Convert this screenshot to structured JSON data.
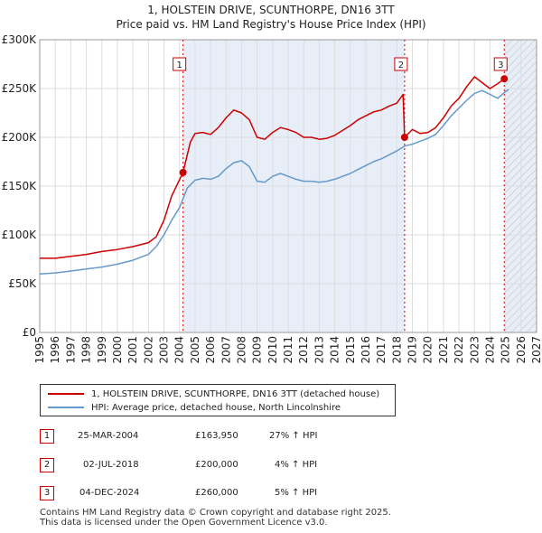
{
  "title": "1, HOLSTEIN DRIVE, SCUNTHORPE, DN16 3TT",
  "subtitle": "Price paid vs. HM Land Registry's House Price Index (HPI)",
  "colors": {
    "property_line": "#cc0000",
    "hpi_line": "#6699cc",
    "shade": "#e8eef8",
    "grid": "#dddddd"
  },
  "chart_data": {
    "type": "line",
    "xlim": [
      1995,
      2027
    ],
    "ylim": [
      0,
      300000
    ],
    "x_ticks": [
      "1995",
      "1996",
      "1997",
      "1998",
      "1999",
      "2000",
      "2001",
      "2002",
      "2003",
      "2004",
      "2005",
      "2006",
      "2007",
      "2008",
      "2009",
      "2010",
      "2011",
      "2012",
      "2013",
      "2014",
      "2015",
      "2016",
      "2017",
      "2018",
      "2019",
      "2020",
      "2021",
      "2022",
      "2023",
      "2024",
      "2025",
      "2026",
      "2027"
    ],
    "y_ticks": [
      {
        "value": 0,
        "label": "£0"
      },
      {
        "value": 50000,
        "label": "£50K"
      },
      {
        "value": 100000,
        "label": "£100K"
      },
      {
        "value": 150000,
        "label": "£150K"
      },
      {
        "value": 200000,
        "label": "£200K"
      },
      {
        "value": 250000,
        "label": "£250K"
      },
      {
        "value": 300000,
        "label": "£300K"
      }
    ],
    "shaded_ranges": [
      [
        2004.23,
        2018.5
      ],
      [
        2024.92,
        2027
      ]
    ],
    "hatched_from": 2025.0,
    "series": [
      {
        "name": "1, HOLSTEIN DRIVE, SCUNTHORPE, DN16 3TT (detached house)",
        "x": [
          1995,
          1996,
          1997,
          1998,
          1999,
          2000,
          2001,
          2002,
          2002.5,
          2003,
          2003.5,
          2004.23,
          2004.7,
          2005,
          2005.5,
          2006,
          2006.5,
          2007,
          2007.5,
          2008,
          2008.5,
          2009,
          2009.5,
          2010,
          2010.5,
          2011,
          2011.5,
          2012,
          2012.5,
          2013,
          2013.5,
          2014,
          2014.5,
          2015,
          2015.5,
          2016,
          2016.5,
          2017,
          2017.5,
          2018,
          2018.4,
          2018.5,
          2019,
          2019.5,
          2020,
          2020.5,
          2021,
          2021.5,
          2022,
          2022.5,
          2023,
          2023.5,
          2024,
          2024.5,
          2024.92,
          2025.1
        ],
        "values": [
          76000,
          76000,
          78000,
          80000,
          83000,
          85000,
          88000,
          92000,
          98000,
          115000,
          140000,
          163950,
          195000,
          204000,
          205000,
          203000,
          210000,
          220000,
          228000,
          225000,
          218000,
          200000,
          198000,
          205000,
          210000,
          208000,
          205000,
          200000,
          200000,
          198000,
          199000,
          202000,
          207000,
          212000,
          218000,
          222000,
          226000,
          228000,
          232000,
          235000,
          244000,
          200000,
          208000,
          204000,
          205000,
          210000,
          220000,
          232000,
          240000,
          252000,
          262000,
          256000,
          250000,
          255000,
          260000,
          262000
        ]
      },
      {
        "name": "HPI: Average price, detached house, North Lincolnshire",
        "x": [
          1995,
          1996,
          1997,
          1998,
          1999,
          2000,
          2001,
          2002,
          2002.5,
          2003,
          2003.5,
          2004,
          2004.5,
          2005,
          2005.5,
          2006,
          2006.5,
          2007,
          2007.5,
          2008,
          2008.5,
          2009,
          2009.5,
          2010,
          2010.5,
          2011,
          2011.5,
          2012,
          2012.5,
          2013,
          2013.5,
          2014,
          2014.5,
          2015,
          2015.5,
          2016,
          2016.5,
          2017,
          2017.5,
          2018,
          2018.5,
          2019,
          2019.5,
          2020,
          2020.5,
          2021,
          2021.5,
          2022,
          2022.5,
          2023,
          2023.5,
          2024,
          2024.5,
          2025,
          2025.2
        ],
        "values": [
          60000,
          61000,
          63000,
          65000,
          67000,
          70000,
          74000,
          80000,
          88000,
          100000,
          115000,
          128000,
          148000,
          156000,
          158000,
          157000,
          160000,
          168000,
          174000,
          176000,
          170000,
          155000,
          154000,
          160000,
          163000,
          160000,
          157000,
          155000,
          155000,
          154000,
          155000,
          157000,
          160000,
          163000,
          167000,
          171000,
          175000,
          178000,
          182000,
          186000,
          191000,
          193000,
          196000,
          199000,
          203000,
          212000,
          222000,
          230000,
          238000,
          245000,
          248000,
          244000,
          240000,
          247000,
          249000
        ]
      }
    ],
    "markers": [
      {
        "label": "1",
        "x": 2004.23,
        "value": 163950
      },
      {
        "label": "2",
        "x": 2018.5,
        "value": 200000
      },
      {
        "label": "3",
        "x": 2024.92,
        "value": 260000
      }
    ]
  },
  "legend": {
    "property": "1, HOLSTEIN DRIVE, SCUNTHORPE, DN16 3TT (detached house)",
    "hpi": "HPI: Average price, detached house, North Lincolnshire"
  },
  "transactions": [
    {
      "num": "1",
      "date": "25-MAR-2004",
      "price": "£163,950",
      "hpi": "27% ↑ HPI"
    },
    {
      "num": "2",
      "date": "02-JUL-2018",
      "price": "£200,000",
      "hpi": "4% ↑ HPI"
    },
    {
      "num": "3",
      "date": "04-DEC-2024",
      "price": "£260,000",
      "hpi": "5% ↑ HPI"
    }
  ],
  "footer": {
    "line1": "Contains HM Land Registry data © Crown copyright and database right 2025.",
    "line2": "This data is licensed under the Open Government Licence v3.0."
  }
}
